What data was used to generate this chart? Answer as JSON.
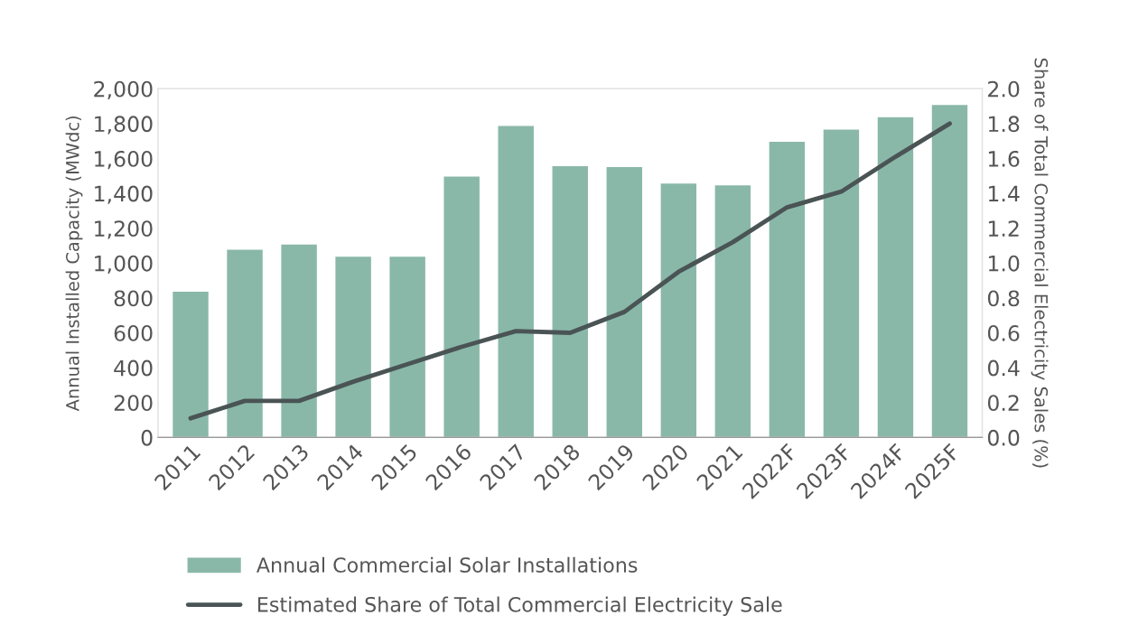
{
  "chart_data": {
    "type": "bar",
    "ylabel": "Annual Installed Capacity (MWdc)",
    "y2label": "Share of Total Commercial Electricity Sales (%)",
    "categories": [
      "2011",
      "2012",
      "2013",
      "2014",
      "2015",
      "2016",
      "2017",
      "2018",
      "2019",
      "2020",
      "2021",
      "2022F",
      "2023F",
      "2024F",
      "2025F"
    ],
    "series": [
      {
        "name": "Annual Commercial Solar Installations",
        "color": "#8ab8a8",
        "values": [
          840,
          1080,
          1110,
          1040,
          1040,
          1500,
          1790,
          1560,
          1555,
          1460,
          1450,
          1700,
          1770,
          1840,
          1910
        ]
      },
      {
        "name": "Estimated Share of Total Commercial Electricity Sale",
        "type": "line",
        "axis": "y2",
        "color": "#4a5455",
        "line_style": "solid",
        "values": [
          0.11,
          0.21,
          0.21,
          0.32,
          0.42,
          0.52,
          0.61,
          0.6,
          0.72,
          0.95,
          1.12,
          1.32,
          1.41,
          1.61,
          1.8
        ]
      }
    ],
    "ylim": [
      0,
      2000
    ],
    "yticks": [
      0,
      200,
      400,
      600,
      800,
      {
        "value": 1000,
        "label": "1,000"
      },
      {
        "value": 1200,
        "label": "1,200"
      },
      {
        "value": 1400,
        "label": "1,400"
      },
      {
        "value": 1600,
        "label": "1,600"
      },
      {
        "value": 1800,
        "label": "1,800"
      },
      {
        "value": 2000,
        "label": "2,000"
      }
    ],
    "y2lim": [
      0,
      2.0
    ],
    "y2ticks": [
      {
        "value": 0,
        "label": "0.0"
      },
      0.2,
      0.4,
      0.6,
      0.8,
      {
        "value": 1,
        "label": "1.0"
      },
      1.2,
      1.4,
      1.6,
      1.8,
      {
        "value": 2,
        "label": "2.0"
      }
    ],
    "grid": false,
    "legend": "bottom"
  }
}
